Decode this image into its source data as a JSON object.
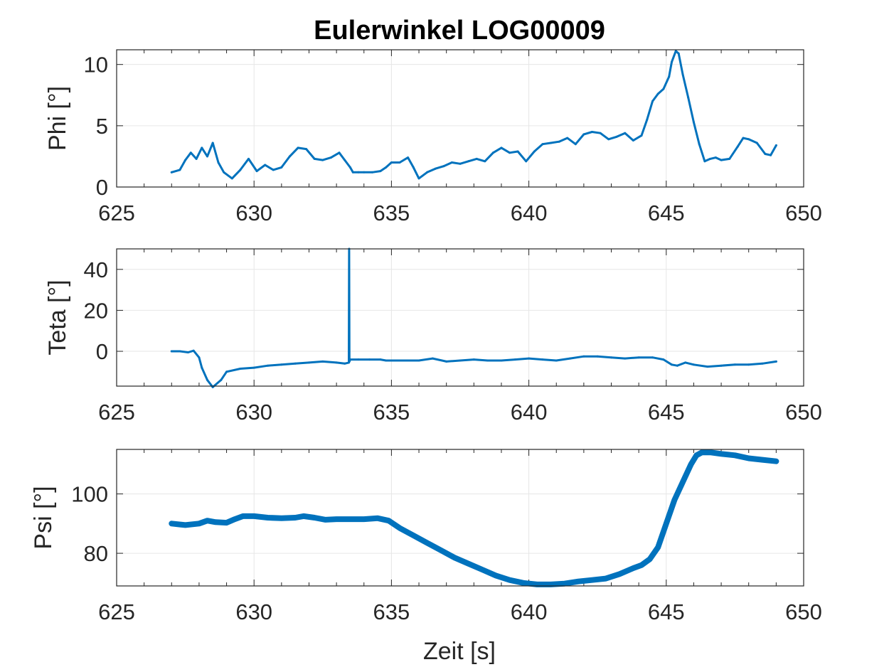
{
  "figure": {
    "title": "Eulerwinkel LOG00009",
    "xlabel": "Zeit [s]",
    "line_color": "#0072BD",
    "grid_color": "#e6e6e6",
    "axis_color": "#262626"
  },
  "chart_data": [
    {
      "type": "line",
      "ylabel": "Phi [°]",
      "xlim": [
        625,
        650
      ],
      "ylim": [
        0,
        11.2
      ],
      "xticks": [
        625,
        630,
        635,
        640,
        645,
        650
      ],
      "yticks": [
        0,
        5,
        10
      ],
      "grid": true,
      "series": [
        {
          "x": [
            627.0,
            627.3,
            627.5,
            627.7,
            627.9,
            628.1,
            628.3,
            628.5,
            628.7,
            628.9,
            629.2,
            629.5,
            629.8,
            630.1,
            630.4,
            630.7,
            631.0,
            631.3,
            631.6,
            631.9,
            632.2,
            632.5,
            632.8,
            633.1,
            633.3,
            633.5,
            633.6,
            633.8,
            634.0,
            634.3,
            634.6,
            634.8,
            635.0,
            635.3,
            635.6,
            635.8,
            636.0,
            636.3,
            636.6,
            636.9,
            637.2,
            637.5,
            637.8,
            638.1,
            638.4,
            638.7,
            639.0,
            639.3,
            639.6,
            639.9,
            640.2,
            640.5,
            640.8,
            641.1,
            641.4,
            641.7,
            642.0,
            642.3,
            642.6,
            642.9,
            643.2,
            643.5,
            643.8,
            644.1,
            644.3,
            644.5,
            644.7,
            644.9,
            645.1,
            645.2,
            645.35,
            645.45,
            645.6,
            645.8,
            646.0,
            646.2,
            646.4,
            646.6,
            646.8,
            647.0,
            647.3,
            647.6,
            647.8,
            648.0,
            648.3,
            648.6,
            648.8,
            649.0
          ],
          "y": [
            1.2,
            1.4,
            2.2,
            2.8,
            2.3,
            3.2,
            2.5,
            3.6,
            2.0,
            1.2,
            0.7,
            1.4,
            2.3,
            1.3,
            1.8,
            1.4,
            1.6,
            2.5,
            3.2,
            3.1,
            2.3,
            2.2,
            2.4,
            2.8,
            2.2,
            1.6,
            1.2,
            1.2,
            1.2,
            1.2,
            1.3,
            1.6,
            2.0,
            2.0,
            2.4,
            1.6,
            0.7,
            1.2,
            1.5,
            1.7,
            2.0,
            1.9,
            2.1,
            2.3,
            2.1,
            2.8,
            3.2,
            2.8,
            2.9,
            2.1,
            2.9,
            3.5,
            3.6,
            3.7,
            4.0,
            3.5,
            4.3,
            4.5,
            4.4,
            3.9,
            4.1,
            4.4,
            3.8,
            4.2,
            5.5,
            7.0,
            7.6,
            8.0,
            9.0,
            10.2,
            11.1,
            10.9,
            9.2,
            7.3,
            5.3,
            3.5,
            2.1,
            2.3,
            2.4,
            2.2,
            2.3,
            3.3,
            4.0,
            3.9,
            3.6,
            2.7,
            2.6,
            3.4
          ]
        }
      ]
    },
    {
      "type": "line",
      "ylabel": "Teta [°]",
      "xlim": [
        625,
        650
      ],
      "ylim": [
        -17,
        50
      ],
      "xticks": [
        625,
        630,
        635,
        640,
        645,
        650
      ],
      "yticks": [
        0,
        20,
        40
      ],
      "grid": true,
      "series": [
        {
          "x": [
            627.0,
            627.3,
            627.6,
            627.8,
            628.0,
            628.1,
            628.3,
            628.5,
            628.8,
            629.0,
            629.5,
            630.0,
            630.5,
            631.0,
            631.5,
            632.0,
            632.5,
            633.0,
            633.3,
            633.45,
            633.46,
            633.47,
            633.5,
            633.8,
            634.2,
            634.6,
            634.8,
            635.0,
            635.5,
            636.0,
            636.5,
            637.0,
            637.5,
            638.0,
            638.5,
            639.0,
            639.5,
            640.0,
            640.5,
            641.0,
            641.5,
            642.0,
            642.5,
            643.0,
            643.5,
            644.0,
            644.5,
            644.9,
            645.2,
            645.4,
            645.7,
            646.0,
            646.5,
            647.0,
            647.5,
            648.0,
            648.5,
            649.0
          ],
          "y": [
            0.0,
            0.0,
            -0.5,
            0.3,
            -3.0,
            -8.0,
            -14.0,
            -17.5,
            -14.0,
            -10.0,
            -8.5,
            -8.0,
            -7.0,
            -6.5,
            -6.0,
            -5.5,
            -5.0,
            -5.5,
            -6.0,
            -5.5,
            50.0,
            -5.0,
            -4.0,
            -4.0,
            -4.0,
            -4.0,
            -4.5,
            -4.5,
            -4.5,
            -4.5,
            -3.5,
            -5.0,
            -4.5,
            -4.0,
            -4.5,
            -4.5,
            -4.0,
            -3.5,
            -4.0,
            -4.5,
            -3.5,
            -2.5,
            -2.5,
            -3.0,
            -3.5,
            -3.0,
            -3.0,
            -4.0,
            -6.5,
            -7.0,
            -5.5,
            -6.5,
            -7.5,
            -7.0,
            -6.5,
            -6.5,
            -6.0,
            -5.0
          ]
        }
      ]
    },
    {
      "type": "line",
      "ylabel": "Psi [°]",
      "xlim": [
        625,
        650
      ],
      "ylim": [
        69,
        115
      ],
      "xticks": [
        625,
        630,
        635,
        640,
        645,
        650
      ],
      "yticks": [
        80,
        100
      ],
      "grid": true,
      "series": [
        {
          "x": [
            627.0,
            627.5,
            628.0,
            628.3,
            628.6,
            629.0,
            629.3,
            629.6,
            630.0,
            630.5,
            631.0,
            631.5,
            631.8,
            632.2,
            632.6,
            633.0,
            633.5,
            634.0,
            634.5,
            634.9,
            635.3,
            635.8,
            636.3,
            636.8,
            637.3,
            637.8,
            638.3,
            638.8,
            639.3,
            639.8,
            640.3,
            640.8,
            641.3,
            641.8,
            642.3,
            642.8,
            643.3,
            643.8,
            644.1,
            644.4,
            644.7,
            645.0,
            645.3,
            645.6,
            645.9,
            646.1,
            646.3,
            646.6,
            647.0,
            647.5,
            648.0,
            648.5,
            649.0
          ],
          "y": [
            90.0,
            89.5,
            90.0,
            91.0,
            90.5,
            90.3,
            91.5,
            92.5,
            92.5,
            92.0,
            91.8,
            92.0,
            92.5,
            92.0,
            91.3,
            91.5,
            91.5,
            91.5,
            91.8,
            91.0,
            88.5,
            86.0,
            83.5,
            81.0,
            78.5,
            76.5,
            74.5,
            72.5,
            71.0,
            70.0,
            69.5,
            69.5,
            69.8,
            70.5,
            71.0,
            71.5,
            73.0,
            75.0,
            76.0,
            78.0,
            82.0,
            90.0,
            98.0,
            104.0,
            110.0,
            113.0,
            114.0,
            114.0,
            113.5,
            113.0,
            112.0,
            111.5,
            111.0
          ]
        }
      ]
    }
  ]
}
